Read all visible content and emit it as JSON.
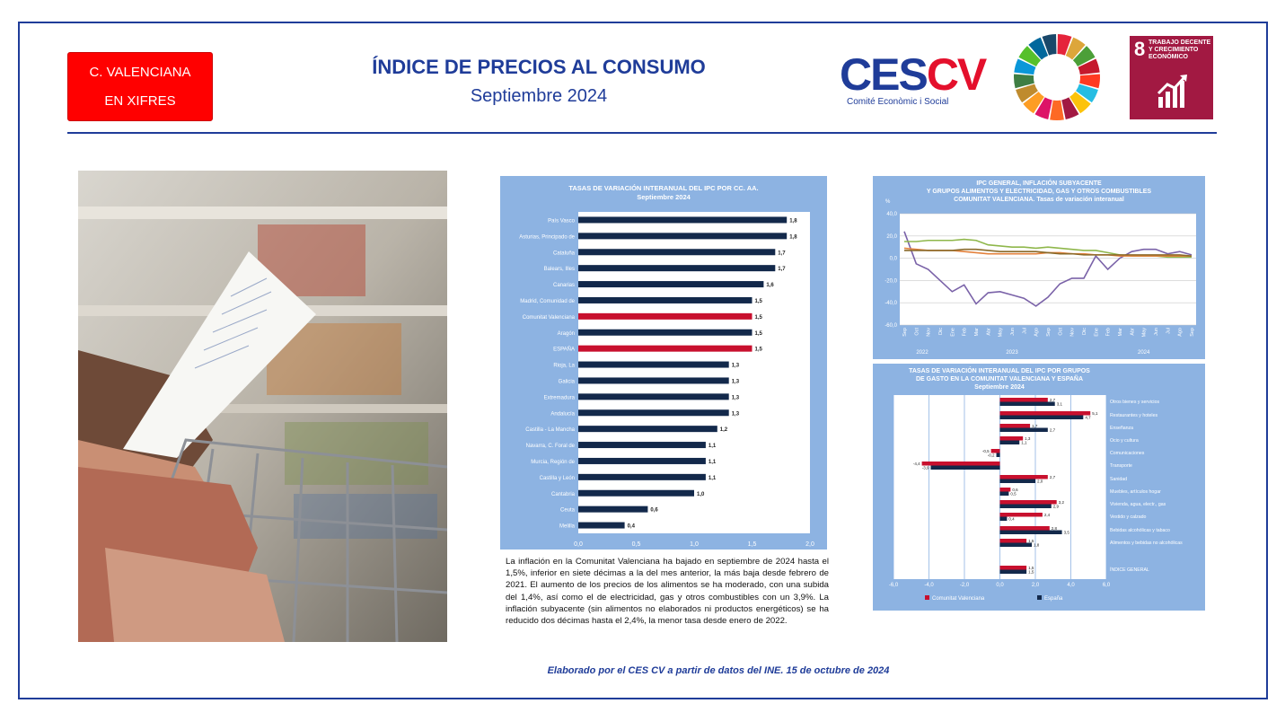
{
  "badge": {
    "line1": "C. VALENCIANA",
    "line2": "EN XIFRES"
  },
  "header": {
    "title": "ÍNDICE DE PRECIOS AL CONSUMO",
    "subtitle": "Septiembre 2024"
  },
  "logos": {
    "ces_a": "CES",
    "ces_b": "CV",
    "ces_sub": "Comité Econòmic i Social",
    "sdg_number": "8",
    "sdg_text": [
      "TRABAJO DECENTE",
      "Y CRECIMIENTO",
      "ECONÓMICO"
    ]
  },
  "colors": {
    "brand": "#1f3c99",
    "cv": "#c8102e",
    "es": "#13294b",
    "panel": "#8db3e2",
    "purple": "#7a62a8",
    "green": "#8fb74b",
    "orange": "#e3813c",
    "olive": "#8a6a2a"
  },
  "paragraph": "La inflación en la Comunitat Valenciana ha bajado en septiembre de 2024 hasta el 1,5%, inferior en siete décimas a la del mes anterior, la más baja desde febrero de 2021. El aumento de los precios de los alimentos se ha moderado, con una subida del 1,4%, así como el de electricidad, gas y otros combustibles con un 3,9%. La inflación subyacente (sin alimentos no elaborados ni productos energéticos) se ha reducido dos décimas hasta el 2,4%, la menor tasa desde enero de 2022.",
  "footer": "Elaborado por el CES CV a partir de datos del INE. 15 de octubre de 2024",
  "chart_data": [
    {
      "type": "bar",
      "title": "TASAS DE VARIACIÓN INTERANUAL DEL IPC POR CC. AA.",
      "subtitle": "Septiembre 2024",
      "categories": [
        "País Vasco",
        "Asturias, Principado de",
        "Cataluña",
        "Balears, Illes",
        "Canarias",
        "Madrid, Comunidad de",
        "Comunitat Valenciana",
        "Aragón",
        "ESPAÑA",
        "Rioja, La",
        "Galicia",
        "Extremadura",
        "Andalucía",
        "Castilla - La Mancha",
        "Navarra, C. Foral de",
        "Murcia, Región de",
        "Castilla y León",
        "Cantabria",
        "Ceuta",
        "Melilla"
      ],
      "values": [
        1.8,
        1.8,
        1.7,
        1.7,
        1.6,
        1.5,
        1.5,
        1.5,
        1.5,
        1.3,
        1.3,
        1.3,
        1.3,
        1.2,
        1.1,
        1.1,
        1.1,
        1.0,
        0.6,
        0.4
      ],
      "labels": [
        "1,8",
        "1,8",
        "1,7",
        "1,7",
        "1,6",
        "1,5",
        "1,5",
        "1,5",
        "1,5",
        "1,3",
        "1,3",
        "1,3",
        "1,3",
        "1,2",
        "1,1",
        "1,1",
        "1,1",
        "1,0",
        "0,6",
        "0,4"
      ],
      "highlight": [
        "Comunitat Valenciana",
        "ESPAÑA"
      ],
      "xlim": [
        0,
        2.0
      ],
      "xticks": [
        "0,0",
        "0,5",
        "1,0",
        "1,5",
        "2,0"
      ]
    },
    {
      "type": "line",
      "title": "IPC GENERAL, INFLACIÓN SUBYACENTE",
      "title2": "Y  GRUPOS ALIMENTOS Y ELECTRICIDAD, GAS Y OTROS COMBUSTIBLES",
      "title3": "COMUNITAT VALENCIANA. Tasas de variación interanual",
      "ylabel": "%",
      "ylim": [
        -60,
        40
      ],
      "yticks": [
        "40,0",
        "20,0",
        "0,0",
        "-20,0",
        "-40,0",
        "-60,0"
      ],
      "x": [
        "Sep",
        "Oct",
        "Nov",
        "Dic",
        "Ene",
        "Feb",
        "Mar",
        "Abr",
        "May",
        "Jun",
        "Jul",
        "Ago",
        "Sep",
        "Oct",
        "Nov",
        "Dic",
        "Ene",
        "Feb",
        "Mar",
        "Abr",
        "May",
        "Jun",
        "Jul",
        "Ago",
        "Sep"
      ],
      "years": [
        "2022",
        "2023",
        "2024"
      ],
      "series": [
        {
          "key": "purple",
          "values": [
            24,
            -5,
            -10,
            -20,
            -30,
            -24,
            -41,
            -31,
            -30,
            -33,
            -36,
            -43,
            -35,
            -23,
            -18,
            -18,
            2,
            -10,
            0,
            6,
            8,
            8,
            4,
            6,
            3
          ]
        },
        {
          "key": "green",
          "values": [
            15,
            15,
            16,
            16,
            16,
            17,
            16,
            12,
            11,
            10,
            10,
            9,
            10,
            9,
            8,
            7,
            7,
            5,
            3,
            2,
            2,
            2,
            1,
            1,
            1
          ]
        },
        {
          "key": "orange",
          "values": [
            9,
            8,
            7,
            7,
            7,
            6,
            5,
            4,
            4,
            4,
            4,
            4,
            5,
            5,
            4,
            4,
            3,
            3,
            2,
            2,
            2,
            2,
            2,
            2,
            2
          ]
        },
        {
          "key": "olive",
          "values": [
            7,
            7,
            7,
            7,
            7,
            8,
            8,
            7,
            6,
            6,
            6,
            6,
            5,
            4,
            4,
            3,
            3,
            3,
            3,
            3,
            3,
            3,
            3,
            3,
            2
          ]
        }
      ]
    },
    {
      "type": "bar",
      "title": "TASAS DE VARIACIÓN INTERANUAL DEL IPC POR GRUPOS",
      "title2": "DE GASTO EN LA COMUNITAT VALENCIANA Y ESPAÑA",
      "title3": "Septiembre 2024",
      "categories": [
        "Otros bienes y servicios",
        "Restaurantes y hoteles",
        "Enseñanza",
        "Ocio y cultura",
        "Comunicaciones",
        "Transporte",
        "Sanidad",
        "Muebles, artículos hogar",
        "Vivienda, agua, electr., gas",
        "Vestido y calzado",
        "Bebidas alcohólicas y tabaco",
        "Alimentos y bebidas no alcohólicas",
        "ÍNDICE GENERAL"
      ],
      "series": [
        {
          "name": "Comunitat Valenciana",
          "values": [
            2.7,
            5.1,
            1.7,
            1.3,
            -0.5,
            -4.4,
            2.7,
            0.6,
            3.2,
            2.4,
            2.8,
            1.5,
            1.5
          ],
          "labels": [
            "2,7",
            "5,1",
            "1,7",
            "1,3",
            "-0,5",
            "-4,4",
            "2,7",
            "0,6",
            "3,2",
            "2,4",
            "2,8",
            "1,5",
            "1,5"
          ]
        },
        {
          "name": "España",
          "values": [
            3.1,
            4.7,
            2.7,
            1.1,
            -0.2,
            -3.9,
            2.0,
            0.5,
            2.9,
            0.4,
            3.5,
            1.8,
            1.5
          ],
          "labels": [
            "3,1",
            "4,7",
            "2,7",
            "1,1",
            "-0,2",
            "-3,9",
            "2,0",
            "0,5",
            "2,9",
            "0,4",
            "3,5",
            "1,8",
            "1,5"
          ]
        }
      ],
      "xlim": [
        -6,
        6
      ],
      "xticks": [
        "-6,0",
        "-4,0",
        "-2,0",
        "0,0",
        "2,0",
        "4,0",
        "6,0"
      ]
    }
  ]
}
